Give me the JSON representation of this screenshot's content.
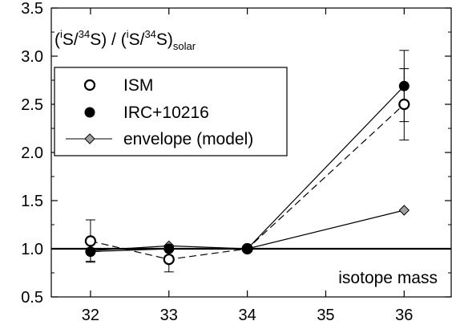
{
  "chart_data": {
    "type": "line",
    "title": {
      "open1": "(",
      "sup1": "i",
      "s1": "S/",
      "sup2": "34",
      "s2": "S) / (",
      "sup3": "i",
      "s3": "S/",
      "sup4": "34",
      "s4": "S)",
      "sub": "solar"
    },
    "xlabel": "isotope mass",
    "ylabel": "",
    "xlim": [
      31.5,
      36.6
    ],
    "ylim": [
      0.5,
      3.5
    ],
    "xticks": [
      32,
      33,
      34,
      35,
      36
    ],
    "yticks": [
      0.5,
      1.0,
      1.5,
      2.0,
      2.5,
      3.0,
      3.5
    ],
    "xtick_labels": [
      "32",
      "33",
      "34",
      "35",
      "36"
    ],
    "ytick_labels": [
      "0.5",
      "1.0",
      "1.5",
      "2.0",
      "2.5",
      "3.0",
      "3.5"
    ],
    "reference_line": 1.0,
    "grid": false,
    "legend_position": "top-left",
    "series": [
      {
        "name": "ISM",
        "marker": "open-circle",
        "line": "dashed",
        "x": [
          32,
          33,
          34,
          36
        ],
        "y": [
          1.08,
          0.89,
          1.0,
          2.5
        ],
        "yerr": [
          0.22,
          0.13,
          0.0,
          0.37
        ]
      },
      {
        "name": "IRC+10216",
        "marker": "filled-circle",
        "line": "solid",
        "x": [
          32,
          33,
          34,
          36
        ],
        "y": [
          0.97,
          1.0,
          1.0,
          2.69
        ],
        "yerr": [
          0.1,
          0.0,
          0.0,
          0.37
        ]
      },
      {
        "name": "envelope (model)",
        "marker": "diamond",
        "line": "solid",
        "x": [
          32,
          33,
          34,
          36
        ],
        "y": [
          0.98,
          1.03,
          1.0,
          1.4
        ],
        "yerr": [
          0,
          0,
          0,
          0
        ]
      }
    ],
    "colors": {
      "axis": "#000000",
      "marker_fill_filled": "#000000",
      "marker_fill_open": "#ffffff",
      "diamond_fill": "#a0a0a0"
    }
  }
}
